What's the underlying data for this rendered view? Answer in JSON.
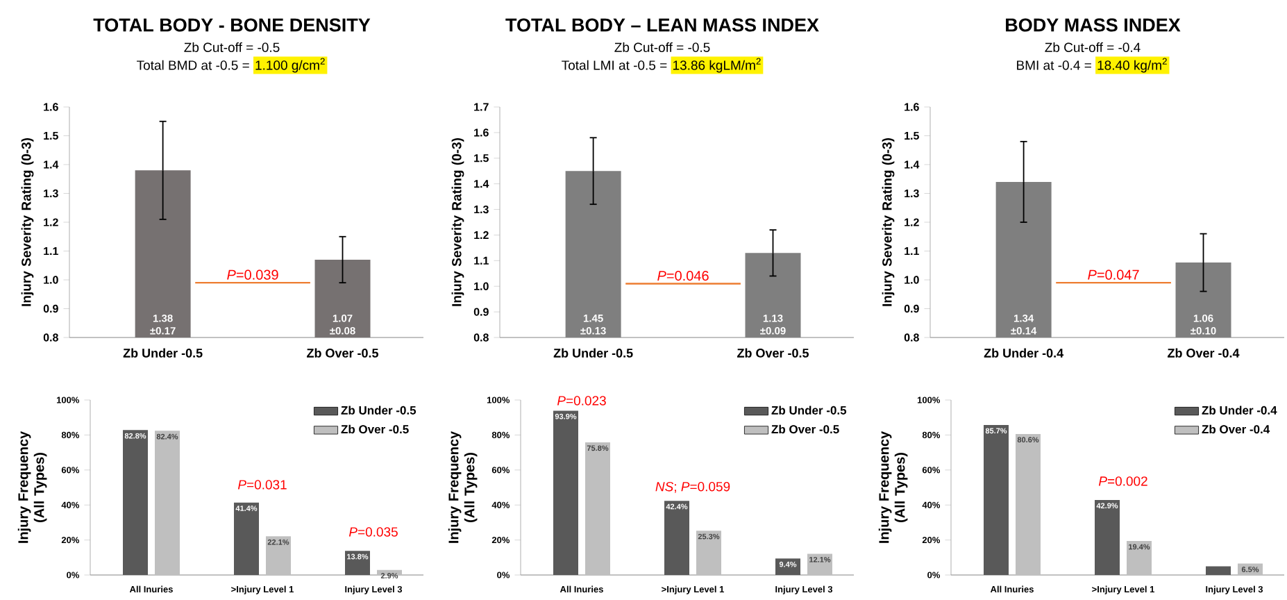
{
  "chart_data": [
    {
      "type": "bar",
      "title": "TOTAL BODY - BONE DENSITY",
      "subtitle": "Zb Cut-off =  -0.5",
      "ylabel": "Injury Severity Rating (0-3)",
      "categories": [
        "Zb Under -0.5",
        "Zb Over -0.5"
      ],
      "values": [
        1.38,
        1.07
      ],
      "errors": [
        0.17,
        0.08
      ],
      "value_labels": [
        "1.38 ±0.17",
        "1.07 ±0.08"
      ],
      "color": "#767171",
      "ylim": [
        0.8,
        1.6
      ],
      "yticks": [
        0.8,
        0.9,
        {
          "value": 1.0,
          "label": "1.0"
        },
        1.1,
        1.2,
        1.3,
        1.4,
        1.5,
        1.6
      ],
      "annotations": [
        "Total BMD at -0.5 =",
        "1.100 g/cm$^{2}$",
        "*P*=0.039"
      ],
      "ref_lines": [
        {
          "axis": "y",
          "value": 0.99,
          "color": "#ed7d31"
        }
      ]
    },
    {
      "type": "bar",
      "title": "TOTAL BODY – LEAN MASS INDEX",
      "subtitle": "Zb Cut-off =  -0.5",
      "ylabel": "Injury Severity Rating (0-3)",
      "categories": [
        "Zb Under -0.5",
        "Zb Over -0.5"
      ],
      "values": [
        1.45,
        1.13
      ],
      "errors": [
        0.13,
        0.09
      ],
      "value_labels": [
        "1.45 ±0.13",
        "1.13 ±0.09"
      ],
      "color": "#7f7f7f",
      "ylim": [
        0.8,
        1.7
      ],
      "yticks": [
        0.8,
        0.9,
        {
          "value": 1.0,
          "label": "1.0"
        },
        1.1,
        1.2,
        1.3,
        1.4,
        1.5,
        1.6,
        1.7
      ],
      "annotations": [
        "Total LMI at -0.5 =",
        "13.86 kgLM/m$^{2}$",
        "*P*=0.046"
      ],
      "ref_lines": [
        {
          "axis": "y",
          "value": 1.01,
          "color": "#ed7d31"
        }
      ]
    },
    {
      "type": "bar",
      "title": "BODY MASS INDEX",
      "subtitle": "Zb Cut-off =  -0.4",
      "ylabel": "Injury Severity Rating (0-3)",
      "categories": [
        "Zb Under -0.4",
        "Zb Over -0.4"
      ],
      "values": [
        1.34,
        1.06
      ],
      "errors": [
        0.14,
        0.1
      ],
      "value_labels": [
        "1.34 ±0.14",
        "1.06 ±0.10"
      ],
      "color": "#7f7f7f",
      "ylim": [
        0.8,
        1.6
      ],
      "yticks": [
        0.8,
        0.9,
        {
          "value": 1.0,
          "label": "1.0"
        },
        1.1,
        1.2,
        1.3,
        1.4,
        1.5,
        1.6
      ],
      "annotations": [
        "BMI at -0.4 =",
        "18.40 kg/m$^{2}$",
        "*P*=0.047"
      ],
      "ref_lines": [
        {
          "axis": "y",
          "value": 0.99,
          "color": "#ed7d31"
        }
      ]
    },
    {
      "type": "bar",
      "ylabel": "Injury Frequency (All Types)",
      "categories": [
        "All Inuries",
        ">Injury Level 1",
        "Injury Level 3"
      ],
      "legend": "top right",
      "ylim": [
        0,
        100
      ],
      "yticks": [
        {
          "value": 0,
          "label": "0%"
        },
        {
          "value": 20,
          "label": "20%"
        },
        {
          "value": 40,
          "label": "40%"
        },
        {
          "value": 60,
          "label": "60%"
        },
        {
          "value": 80,
          "label": "80%"
        },
        {
          "value": 100,
          "label": "100%"
        }
      ],
      "series": [
        {
          "name": "Zb Under -0.5",
          "color": "#595959",
          "values": [
            82.8,
            41.4,
            13.8
          ],
          "value_labels": [
            "82.8%",
            "41.4%",
            "13.8%"
          ]
        },
        {
          "name": "Zb Over -0.5",
          "color": "#bfbfbf",
          "values": [
            82.4,
            22.1,
            2.9
          ],
          "value_labels": [
            "82.4%",
            "22.1%",
            "2.9%"
          ]
        }
      ],
      "annotations": [
        "*P*=0.031",
        "*P*=0.035"
      ]
    },
    {
      "type": "bar",
      "ylabel": "Injury Frequency (All Types)",
      "categories": [
        "All Inuries",
        ">Injury Level 1",
        "Injury Level 3"
      ],
      "legend": "top right",
      "ylim": [
        0,
        100
      ],
      "yticks": [
        {
          "value": 0,
          "label": "0%"
        },
        {
          "value": 20,
          "label": "20%"
        },
        {
          "value": 40,
          "label": "40%"
        },
        {
          "value": 60,
          "label": "60%"
        },
        {
          "value": 80,
          "label": "80%"
        },
        {
          "value": 100,
          "label": "100%"
        }
      ],
      "series": [
        {
          "name": "Zb Under -0.5",
          "color": "#595959",
          "values": [
            93.9,
            42.4,
            9.4
          ],
          "value_labels": [
            "93.9%",
            "42.4%",
            "9.4%"
          ]
        },
        {
          "name": "Zb Over -0.5",
          "color": "#bfbfbf",
          "values": [
            75.8,
            25.3,
            12.1
          ],
          "value_labels": [
            "75.8%",
            "25.3%",
            "12.1%"
          ]
        }
      ],
      "annotations": [
        "*P*=0.023",
        "*NS*; *P*=0.059"
      ]
    },
    {
      "type": "bar",
      "ylabel": "Injury Frequency (All Types)",
      "categories": [
        "All Inuries",
        ">Injury Level 1",
        "Injury Level 3"
      ],
      "legend": "top right",
      "ylim": [
        0,
        100
      ],
      "yticks": [
        {
          "value": 0,
          "label": "0%"
        },
        {
          "value": 20,
          "label": "20%"
        },
        {
          "value": 40,
          "label": "40%"
        },
        {
          "value": 60,
          "label": "60%"
        },
        {
          "value": 80,
          "label": "80%"
        },
        {
          "value": 100,
          "label": "100%"
        }
      ],
      "series": [
        {
          "name": "Zb Under -0.4",
          "color": "#595959",
          "values": [
            85.7,
            42.9,
            5
          ],
          "value_labels": [
            "85.7%",
            "42.9%",
            null
          ]
        },
        {
          "name": "Zb Over -0.4",
          "color": "#bfbfbf",
          "values": [
            80.6,
            19.4,
            6.5
          ],
          "value_labels": [
            "80.6%",
            "19.4%",
            "6.5%"
          ]
        }
      ],
      "annotations": [
        "*P*=0.002"
      ]
    }
  ]
}
